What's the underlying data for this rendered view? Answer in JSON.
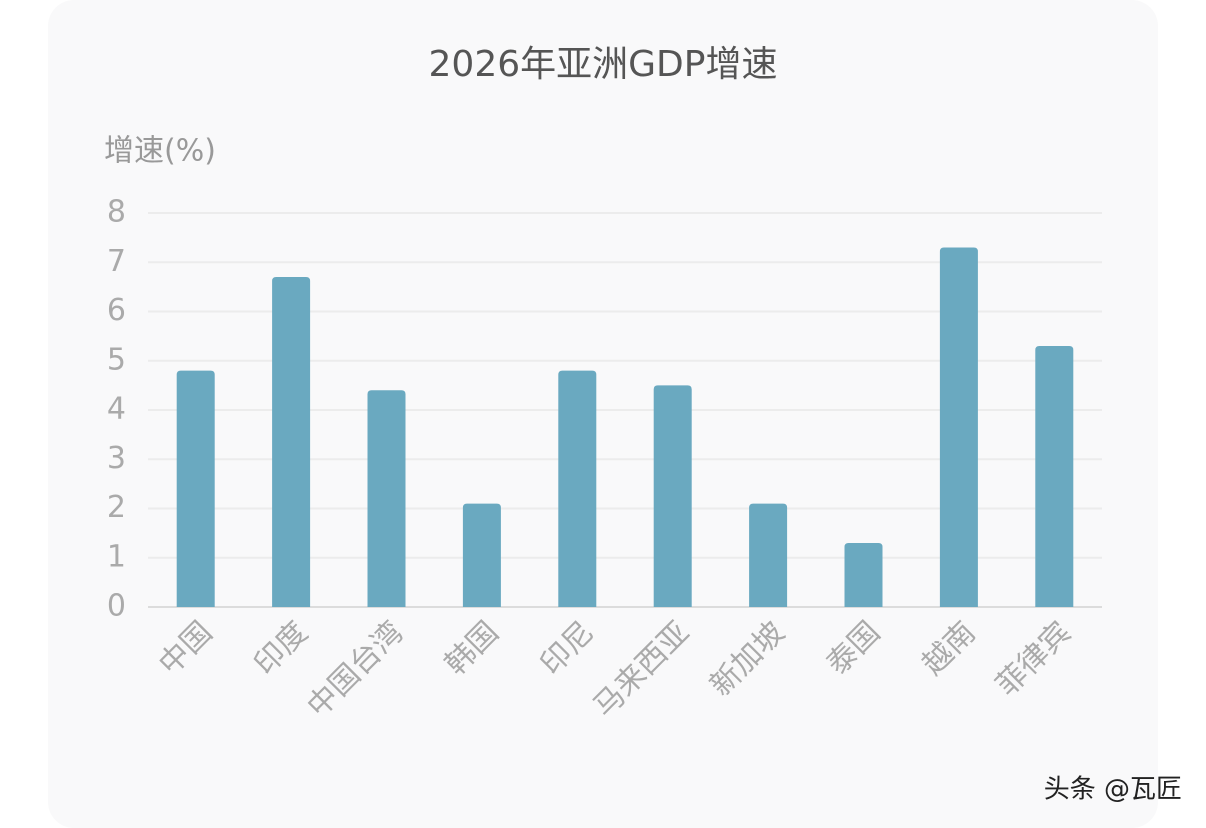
{
  "chart_data": {
    "type": "bar",
    "title": "2026年亚洲GDP增速",
    "y_label": "增速(%)",
    "categories": [
      "中国",
      "印度",
      "中国台湾",
      "韩国",
      "印尼",
      "马来西亚",
      "新加坡",
      "泰国",
      "越南",
      "菲律宾"
    ],
    "values": [
      4.8,
      6.7,
      4.4,
      2.1,
      4.8,
      4.5,
      2.1,
      1.3,
      7.3,
      5.3
    ],
    "color": "#6aa9c0",
    "ylim": [
      0,
      8
    ],
    "yticks": [
      0,
      1,
      2,
      3,
      4,
      5,
      6,
      7,
      8
    ],
    "grid": true,
    "annotation": "头条 @瓦匠"
  }
}
